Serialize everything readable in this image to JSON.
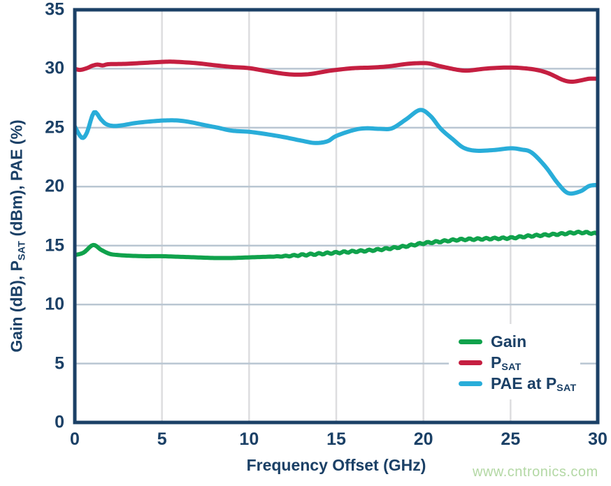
{
  "page": {
    "watermark": "www.cntronics.com"
  },
  "colors": {
    "navy": "#1b4066",
    "gain": "#10a24c",
    "psat": "#c51f41",
    "pae": "#29add9",
    "hgrid": "#b9c6d2",
    "vgrid": "#dddddf",
    "watermark": "#b3d8a4",
    "legend_bg": "#ffffff"
  },
  "chart_data": {
    "type": "line",
    "title": "",
    "xlabel": "Frequency Offset (GHz)",
    "ylabel_parts": [
      {
        "t": "Gain (dB), P"
      },
      {
        "t": "SAT",
        "sub": true
      },
      {
        "t": " (dBm), PAE (%)"
      }
    ],
    "xlim": [
      0,
      30
    ],
    "ylim": [
      0,
      35
    ],
    "x_ticks": [
      0,
      5,
      10,
      15,
      20,
      25,
      30
    ],
    "y_ticks": [
      0,
      5,
      10,
      15,
      20,
      25,
      30,
      35
    ],
    "grid": true,
    "legend_position": "inside-bottom-right",
    "series": [
      {
        "name": "Gain",
        "label_parts": [
          {
            "t": "Gain"
          }
        ],
        "color_key": "gain",
        "x": [
          0,
          0.5,
          1.05,
          1.5,
          2,
          2.5,
          3,
          4,
          5,
          6,
          7,
          8,
          9,
          10,
          11,
          12,
          13,
          14,
          15,
          16,
          17,
          18,
          19,
          20,
          21,
          22,
          23,
          24,
          25,
          26,
          27,
          28,
          28.7,
          29.3,
          30
        ],
        "y": [
          14.2,
          14.4,
          15.05,
          14.65,
          14.3,
          14.2,
          14.15,
          14.1,
          14.1,
          14.05,
          14.0,
          13.95,
          13.95,
          14.0,
          14.05,
          14.1,
          14.2,
          14.3,
          14.4,
          14.5,
          14.6,
          14.75,
          14.95,
          15.2,
          15.35,
          15.5,
          15.55,
          15.6,
          15.65,
          15.8,
          15.9,
          16.0,
          16.1,
          16.1,
          16.0
        ],
        "ripple": {
          "from": 11,
          "amplitude": 0.07,
          "period": 0.48
        }
      },
      {
        "name": "PSAT",
        "label_parts": [
          {
            "t": "P"
          },
          {
            "t": "SAT",
            "sub": true
          }
        ],
        "color_key": "psat",
        "x": [
          0,
          0.3,
          0.7,
          1,
          1.3,
          1.6,
          1.9,
          2.5,
          3,
          4,
          5,
          5.5,
          6,
          7,
          8,
          9,
          10,
          11,
          12,
          12.7,
          13.5,
          14.5,
          15,
          16,
          17,
          18,
          19,
          19.7,
          20.3,
          21,
          22,
          22.6,
          23.5,
          24.3,
          25,
          25.7,
          26.5,
          27.2,
          28,
          28.5,
          29,
          29.5,
          30
        ],
        "y": [
          30.0,
          29.9,
          30.05,
          30.25,
          30.35,
          30.28,
          30.38,
          30.4,
          30.42,
          30.5,
          30.58,
          30.6,
          30.57,
          30.47,
          30.3,
          30.15,
          30.05,
          29.8,
          29.57,
          29.5,
          29.55,
          29.8,
          29.9,
          30.05,
          30.1,
          30.2,
          30.4,
          30.47,
          30.45,
          30.2,
          29.9,
          29.85,
          30.0,
          30.08,
          30.1,
          30.05,
          29.9,
          29.6,
          29.05,
          28.9,
          29.0,
          29.15,
          29.15
        ]
      },
      {
        "name": "PAE at PSAT",
        "label_parts": [
          {
            "t": "PAE at P"
          },
          {
            "t": "SAT",
            "sub": true
          }
        ],
        "color_key": "pae",
        "x": [
          0,
          0.4,
          0.7,
          1.1,
          1.5,
          1.8,
          2.2,
          2.7,
          3.5,
          4.5,
          5.3,
          6,
          6.7,
          7.5,
          8.2,
          9,
          10,
          11,
          12,
          13,
          13.8,
          14.5,
          15,
          16,
          16.7,
          17.5,
          18.2,
          19,
          19.8,
          20.4,
          21,
          21.7,
          22.3,
          23,
          24,
          25,
          25.6,
          26.2,
          27,
          27.7,
          28.3,
          29,
          29.5,
          30
        ],
        "y": [
          25.1,
          24.15,
          24.6,
          26.3,
          25.7,
          25.3,
          25.15,
          25.2,
          25.4,
          25.55,
          25.62,
          25.6,
          25.45,
          25.2,
          25.0,
          24.75,
          24.65,
          24.45,
          24.2,
          23.9,
          23.7,
          23.85,
          24.3,
          24.8,
          24.95,
          24.9,
          24.95,
          25.7,
          26.5,
          26.0,
          24.9,
          24.0,
          23.3,
          23.05,
          23.1,
          23.25,
          23.15,
          22.9,
          21.7,
          20.3,
          19.45,
          19.6,
          20.05,
          20.15
        ]
      }
    ]
  }
}
